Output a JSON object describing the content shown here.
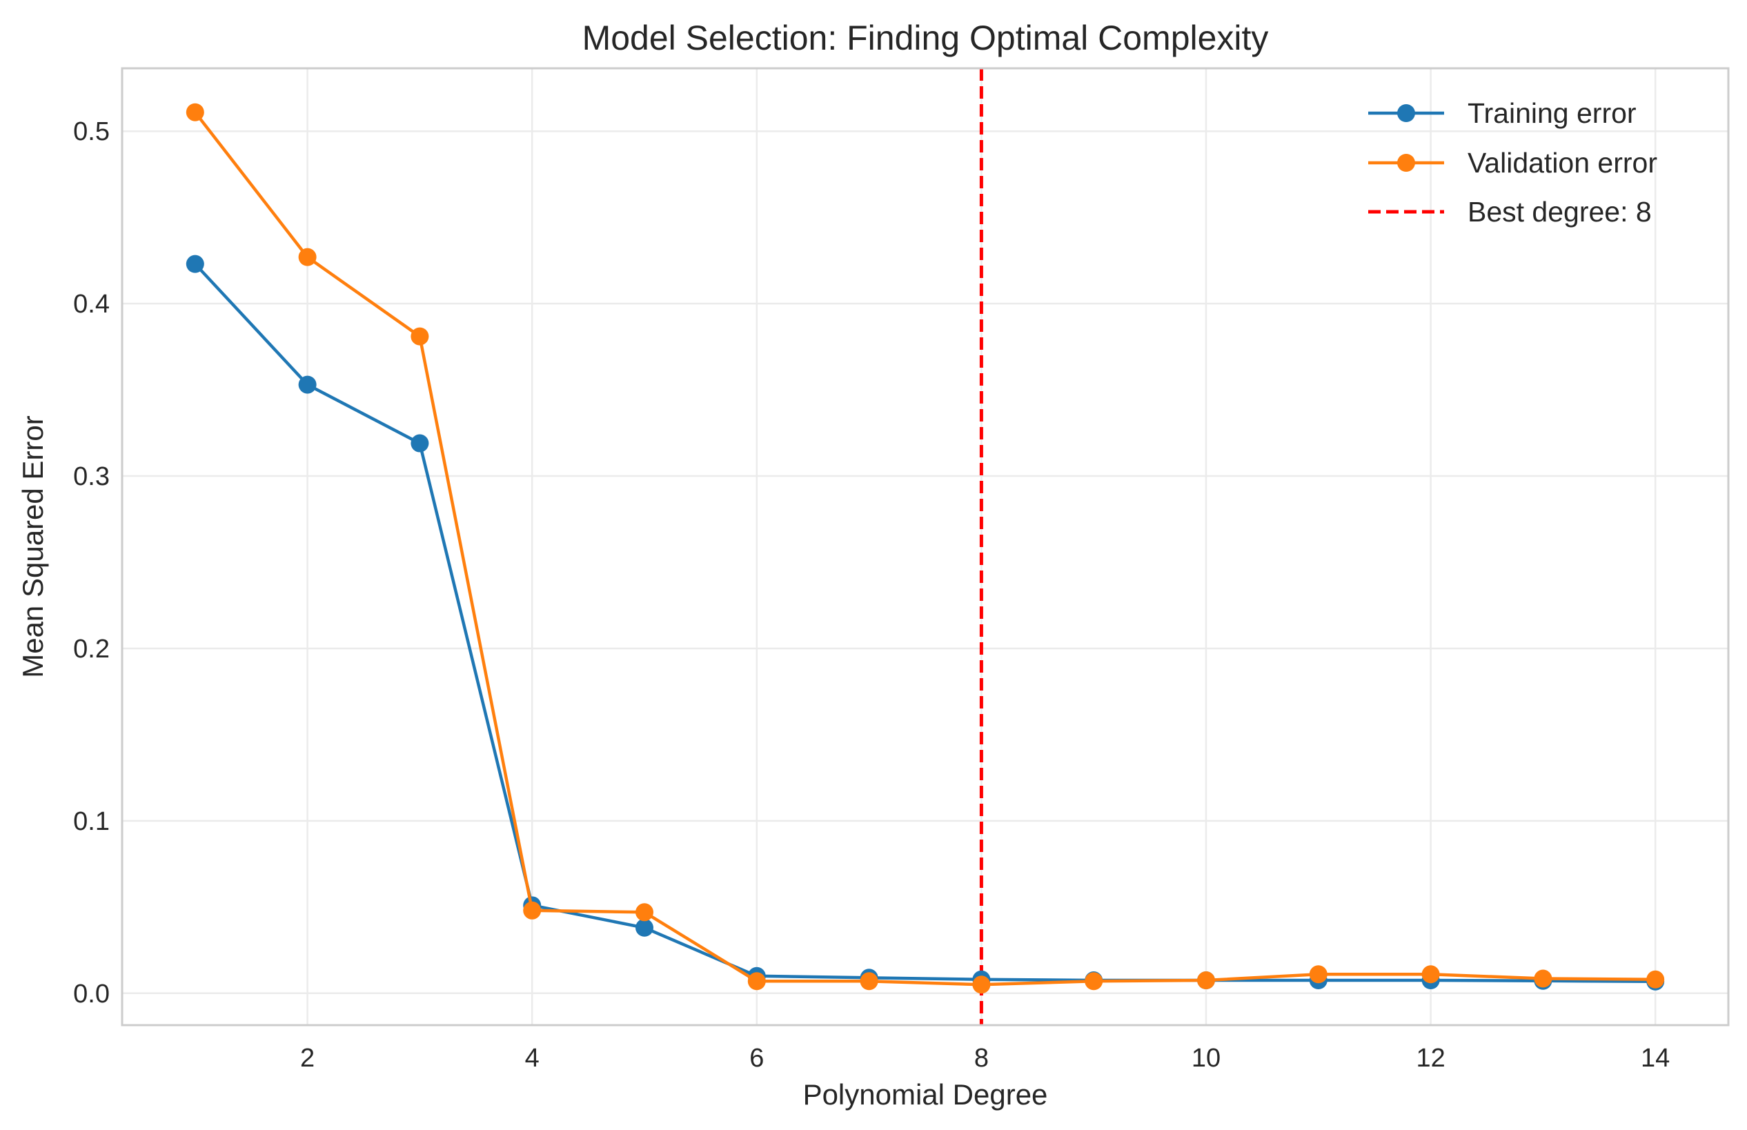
{
  "chart_data": {
    "type": "line",
    "title": "Model Selection: Finding Optimal Complexity",
    "xlabel": "Polynomial Degree",
    "ylabel": "Mean Squared Error",
    "xlim": [
      0.35,
      14.65
    ],
    "ylim": [
      -0.0185,
      0.5365
    ],
    "x_ticks": [
      2,
      4,
      6,
      8,
      10,
      12,
      14
    ],
    "y_ticks": [
      0.0,
      0.1,
      0.2,
      0.3,
      0.4,
      0.5
    ],
    "x_tick_labels": [
      "2",
      "4",
      "6",
      "8",
      "10",
      "12",
      "14"
    ],
    "y_tick_labels": [
      "0.0",
      "0.1",
      "0.2",
      "0.3",
      "0.4",
      "0.5"
    ],
    "grid": true,
    "legend_position": "top-right",
    "x": [
      1,
      2,
      3,
      4,
      5,
      6,
      7,
      8,
      9,
      10,
      11,
      12,
      13,
      14
    ],
    "series": [
      {
        "name": "Training error",
        "color": "#1f77b4",
        "values": [
          0.423,
          0.353,
          0.319,
          0.051,
          0.038,
          0.01,
          0.009,
          0.008,
          0.0075,
          0.0075,
          0.0075,
          0.0075,
          0.0072,
          0.0068
        ]
      },
      {
        "name": "Validation error",
        "color": "#ff7f0e",
        "values": [
          0.511,
          0.427,
          0.381,
          0.048,
          0.047,
          0.007,
          0.007,
          0.005,
          0.007,
          0.0075,
          0.011,
          0.011,
          0.0085,
          0.008
        ]
      }
    ],
    "reference_line": {
      "name": "Best degree: 8",
      "x": 8,
      "color": "#ff0000",
      "style": "dashed"
    }
  }
}
